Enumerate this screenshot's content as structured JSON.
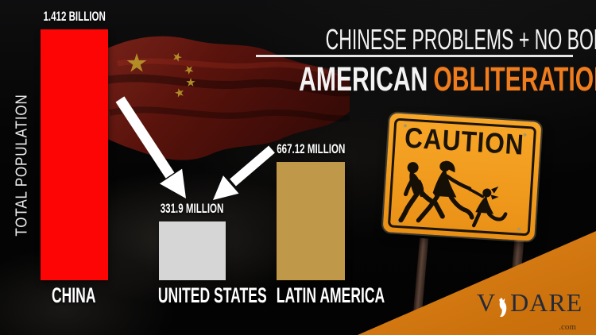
{
  "header": {
    "line1": "CHINESE PROBLEMS + NO BORDERS",
    "line2_white": "AMERICAN",
    "line2_accent": "OBLITERATION",
    "accent_color": "#ef7c1d"
  },
  "chart_data": {
    "type": "bar",
    "title": "",
    "ylabel": "TOTAL POPULATION",
    "categories": [
      "CHINA",
      "UNITED STATES",
      "LATIN AMERICA"
    ],
    "values_millions": [
      1412,
      331.9,
      667.12
    ],
    "value_labels": [
      "1.412 BILLION",
      "331.9 MILLION",
      "667.12 MILLION"
    ],
    "bar_colors": [
      "#fe0505",
      "#d6d6d6",
      "#c0984a"
    ],
    "ylim": [
      0,
      1412
    ],
    "grid": false,
    "legend": false
  },
  "caution_sign": {
    "text": "CAUTION",
    "sign_color": "#f09a1d",
    "icon": "running-family-icon"
  },
  "logo": {
    "v": "V",
    "dare": "DARE",
    "tld": ".com",
    "triangle_color": "#ec9022"
  },
  "flag": {
    "star_color": "#bf9c2c",
    "field_color": "#5e140d"
  },
  "arrows": {
    "color": "#ffffff"
  }
}
